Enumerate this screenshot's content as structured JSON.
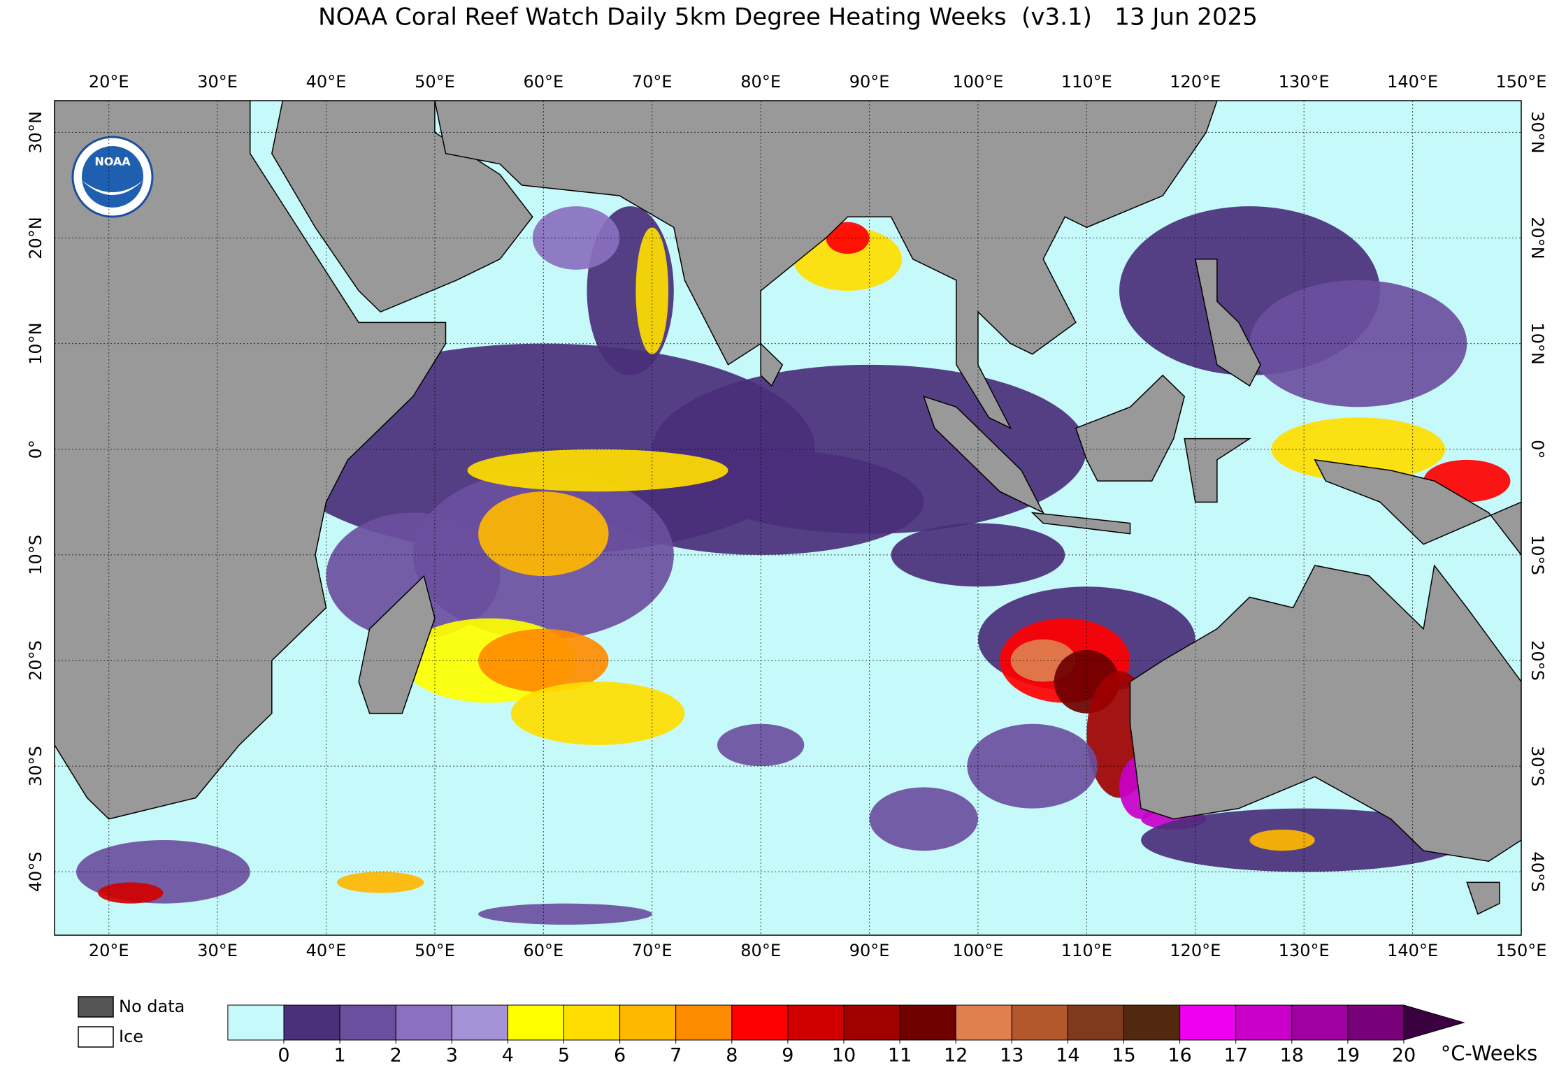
{
  "title": "NOAA Coral Reef Watch Daily 5km Degree Heating Weeks  (v3.1)   13 Jun 2025",
  "logo": "NOAA",
  "map": {
    "xlim": [
      15,
      150
    ],
    "ylim": [
      -46,
      33
    ],
    "grid": true,
    "land_color": "#999999",
    "xticks": [
      {
        "value": 20,
        "label": "20°E"
      },
      {
        "value": 30,
        "label": "30°E"
      },
      {
        "value": 40,
        "label": "40°E"
      },
      {
        "value": 50,
        "label": "50°E"
      },
      {
        "value": 60,
        "label": "60°E"
      },
      {
        "value": 70,
        "label": "70°E"
      },
      {
        "value": 80,
        "label": "80°E"
      },
      {
        "value": 90,
        "label": "90°E"
      },
      {
        "value": 100,
        "label": "100°E"
      },
      {
        "value": 110,
        "label": "110°E"
      },
      {
        "value": 120,
        "label": "120°E"
      },
      {
        "value": 130,
        "label": "130°E"
      },
      {
        "value": 140,
        "label": "140°E"
      },
      {
        "value": 150,
        "label": "150°E"
      }
    ],
    "yticks": [
      {
        "value": -40,
        "label": "40°S"
      },
      {
        "value": -30,
        "label": "30°S"
      },
      {
        "value": -20,
        "label": "20°S"
      },
      {
        "value": -10,
        "label": "10°S"
      },
      {
        "value": 0,
        "label": "0°"
      },
      {
        "value": 10,
        "label": "10°N"
      },
      {
        "value": 20,
        "label": "20°N"
      },
      {
        "value": 30,
        "label": "30°N"
      }
    ]
  },
  "colorbar": {
    "ticks": [
      0,
      1,
      2,
      3,
      4,
      5,
      6,
      7,
      8,
      9,
      10,
      11,
      12,
      13,
      14,
      15,
      16,
      17,
      18,
      19,
      20
    ],
    "colors": [
      "#c6f9f9",
      "#4a2f7b",
      "#6a4f9e",
      "#8a70bf",
      "#a692d6",
      "#ffff00",
      "#ffdd00",
      "#ffb700",
      "#ff8c00",
      "#ff0000",
      "#d00000",
      "#a00000",
      "#6e0000",
      "#e07f50",
      "#b3572d",
      "#7f3a1e",
      "#52290f",
      "#ee00ee",
      "#c800c8",
      "#a000a0",
      "#780078"
    ],
    "extend_color": "#3a0040",
    "label": "°C-Weeks"
  },
  "legend": [
    {
      "label": "No data",
      "color": "#555555"
    },
    {
      "label": "Ice",
      "color": "#ffffff"
    }
  ]
}
